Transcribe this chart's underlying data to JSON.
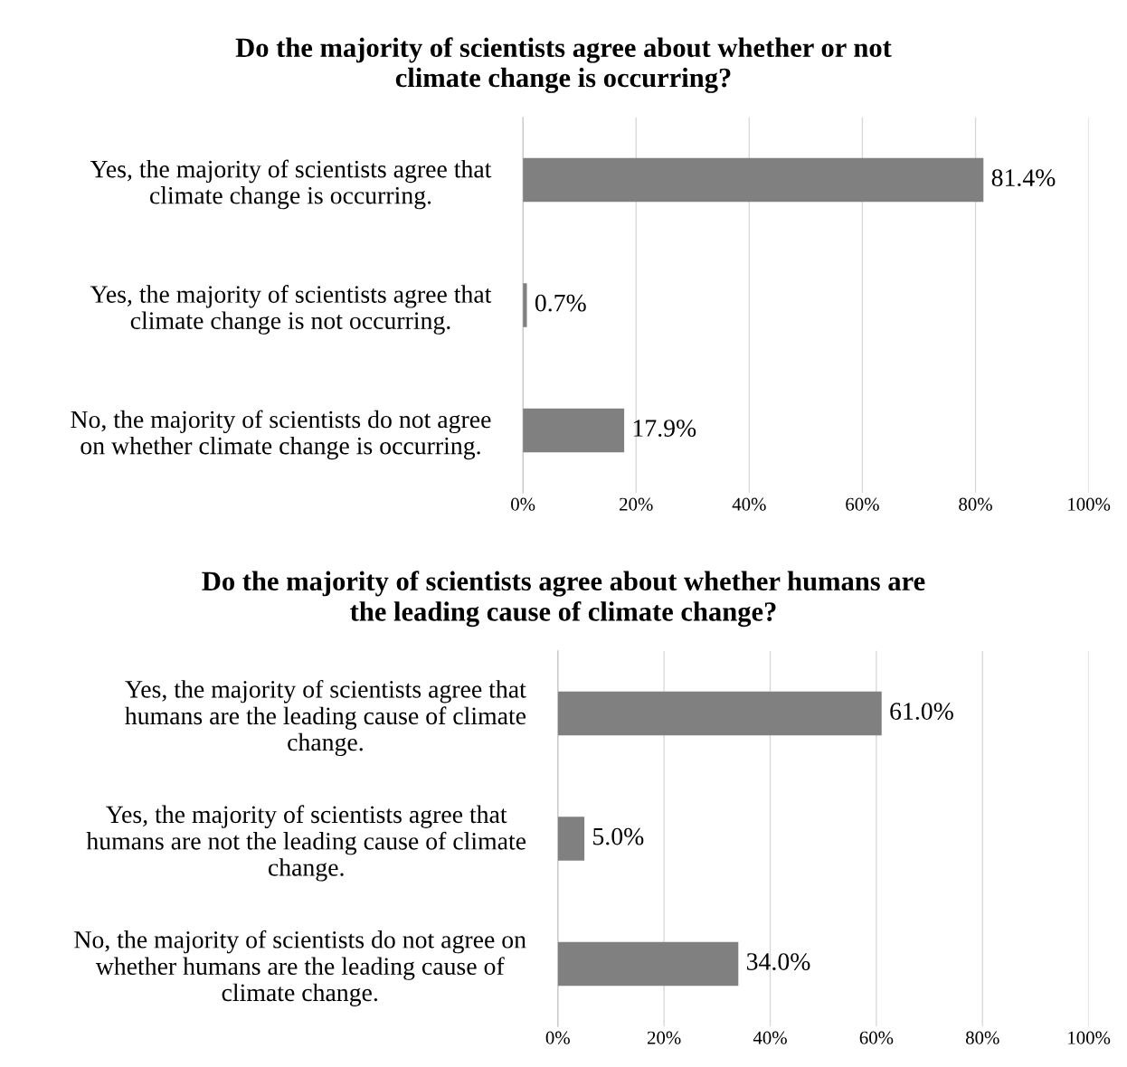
{
  "chart_data": [
    {
      "type": "bar",
      "orientation": "horizontal",
      "title": "Do the majority of scientists agree about whether or not\nclimate change is occurring?",
      "categories": [
        "Yes, the majority of scientists agree that\nclimate change is occurring.",
        "Yes, the majority of scientists agree that\nclimate change is not occurring.",
        "No, the majority of scientists do not agree\non whether climate change is occurring."
      ],
      "values": [
        81.4,
        0.7,
        17.9
      ],
      "color": "#808080",
      "value_labels": [
        "81.4%",
        "0.7%",
        "17.9%"
      ],
      "xlim": [
        0,
        100
      ],
      "xticks": [
        {
          "value": 0,
          "label": "0%"
        },
        {
          "value": 20,
          "label": "20%"
        },
        {
          "value": 40,
          "label": "40%"
        },
        {
          "value": 60,
          "label": "60%"
        },
        {
          "value": 80,
          "label": "80%"
        },
        {
          "value": 100,
          "label": "100%"
        }
      ],
      "grid": "x",
      "legend": false
    },
    {
      "type": "bar",
      "orientation": "horizontal",
      "title": "Do the majority of scientists agree about whether humans are\nthe leading cause of climate change?",
      "categories": [
        "Yes, the majority of scientists agree that\nhumans are the leading cause of climate\nchange.",
        "Yes, the majority of scientists agree that\nhumans are not the leading cause of climate\nchange.",
        "No, the majority of scientists do not agree on\nwhether humans are the leading cause of\nclimate change."
      ],
      "values": [
        61.0,
        5.0,
        34.0
      ],
      "color": "#808080",
      "value_labels": [
        "61.0%",
        "5.0%",
        "34.0%"
      ],
      "xlim": [
        0,
        100
      ],
      "xticks": [
        {
          "value": 0,
          "label": "0%"
        },
        {
          "value": 20,
          "label": "20%"
        },
        {
          "value": 40,
          "label": "40%"
        },
        {
          "value": 60,
          "label": "60%"
        },
        {
          "value": 80,
          "label": "80%"
        },
        {
          "value": 100,
          "label": "100%"
        }
      ],
      "grid": "x",
      "legend": false
    }
  ]
}
